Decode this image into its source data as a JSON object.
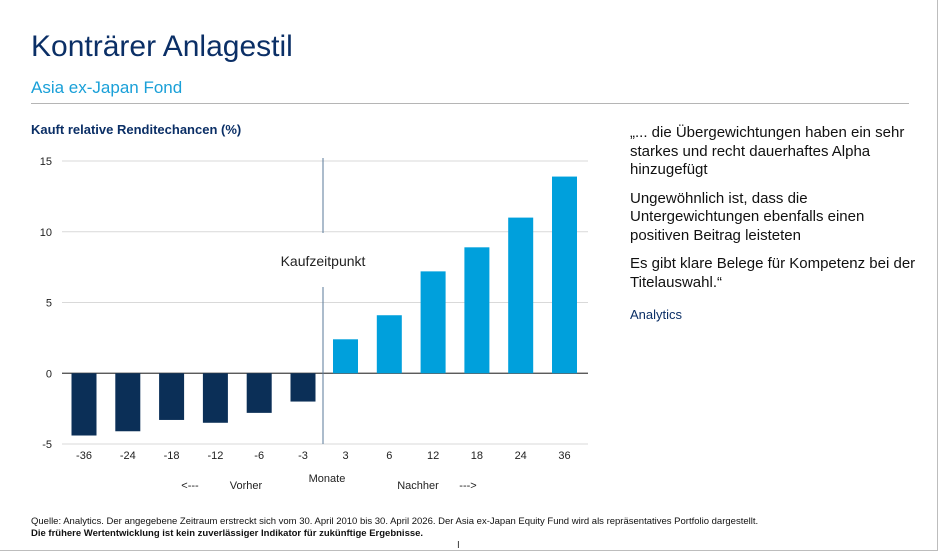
{
  "header": {
    "title": "Konträrer Anlagestil",
    "subtitle": "Asia ex-Japan Fond"
  },
  "chart_data": {
    "type": "bar",
    "title": "Kauft relative Renditechancen (%)",
    "categories": [
      "-36",
      "-24",
      "-18",
      "-12",
      "-6",
      "-3",
      "3",
      "6",
      "12",
      "18",
      "24",
      "36"
    ],
    "values": [
      -4.4,
      -4.1,
      -3.3,
      -3.5,
      -2.8,
      -2.0,
      2.4,
      4.1,
      7.2,
      8.9,
      11.0,
      13.9
    ],
    "ylim": [
      -5,
      15
    ],
    "yticks": [
      "15",
      "10",
      "5",
      "0",
      "-5"
    ],
    "ytick_values": [
      15,
      10,
      5,
      0,
      -5
    ],
    "xlabel": "Monate",
    "annotation": "Kaufzeitpunkt",
    "before_label": "Vorher",
    "before_arrow": "<---",
    "after_label": "Nachher",
    "after_arrow": "--->",
    "colors": {
      "before": "#0b2f57",
      "after": "#00a0dc"
    },
    "grid": true,
    "legend": "none"
  },
  "quote": {
    "p1": "„... die Übergewichtungen haben ein sehr starkes und recht dauerhaftes Alpha hinzugefügt",
    "p2": "Ungewöhnlich ist, dass die Untergewichtungen ebenfalls einen positiven Beitrag leisteten",
    "p3": "Es gibt klare Belege für Kompetenz bei der Titelauswahl.“",
    "source": "Analytics"
  },
  "footer": {
    "source_line": "Quelle: Analytics. Der angegebene Zeitraum erstreckt sich vom 30. April 2010 bis 30. April 2026. Der Asia ex-Japan Equity Fund wird als repräsentatives Portfolio dargestellt.",
    "disclaimer": "Die frühere Wertentwicklung ist kein zuverlässiger Indikator für zukünftige Ergebnisse."
  },
  "cursor_glyph": "I"
}
